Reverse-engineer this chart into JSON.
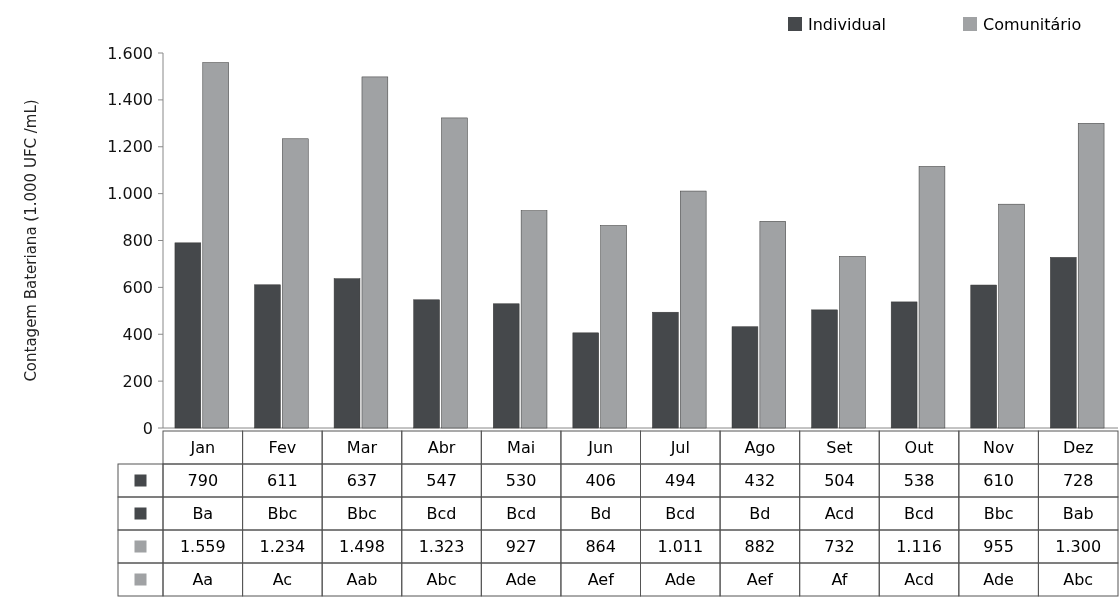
{
  "chart_data": {
    "type": "bar",
    "ylabel": "Contagem Bateriana (1.000 UFC /mL)",
    "categories": [
      "Jan",
      "Fev",
      "Mar",
      "Abr",
      "Mai",
      "Jun",
      "Jul",
      "Ago",
      "Set",
      "Out",
      "Nov",
      "Dez"
    ],
    "series": [
      {
        "name": "Individual",
        "color": "#45484b",
        "values": [
          790,
          611,
          637,
          547,
          530,
          406,
          494,
          432,
          504,
          538,
          610,
          728
        ],
        "value_labels": [
          "790",
          "611",
          "637",
          "547",
          "530",
          "406",
          "494",
          "432",
          "504",
          "538",
          "610",
          "728"
        ]
      },
      {
        "name": "Comunitário",
        "color": "#a0a2a4",
        "values": [
          1559,
          1234,
          1498,
          1323,
          927,
          864,
          1011,
          882,
          732,
          1116,
          955,
          1300
        ],
        "value_labels": [
          "1.559",
          "1.234",
          "1.498",
          "1.323",
          "927",
          "864",
          "1.011",
          "882",
          "732",
          "1.116",
          "955",
          "1.300"
        ]
      }
    ],
    "ylim": [
      0,
      1600
    ],
    "yticks": [
      0,
      200,
      400,
      600,
      800,
      {
        "value": 1000,
        "label": "1.000"
      },
      {
        "value": 1200,
        "label": "1.200"
      },
      {
        "value": 1400,
        "label": "1.400"
      },
      {
        "value": 1600,
        "label": "1.600"
      }
    ],
    "legend": "top right",
    "annotations": [
      "Ba",
      "Bbc",
      "Bbc",
      "Bcd",
      "Bcd",
      "Bd",
      "Bcd",
      "Bd",
      "Acd",
      "Bcd",
      "Bbc",
      "Bab",
      "Aa",
      "Ac",
      "Aab",
      "Abc",
      "Ade",
      "Aef",
      "Ade",
      "Aef",
      "Af",
      "Acd",
      "Ade",
      "Abc"
    ]
  }
}
